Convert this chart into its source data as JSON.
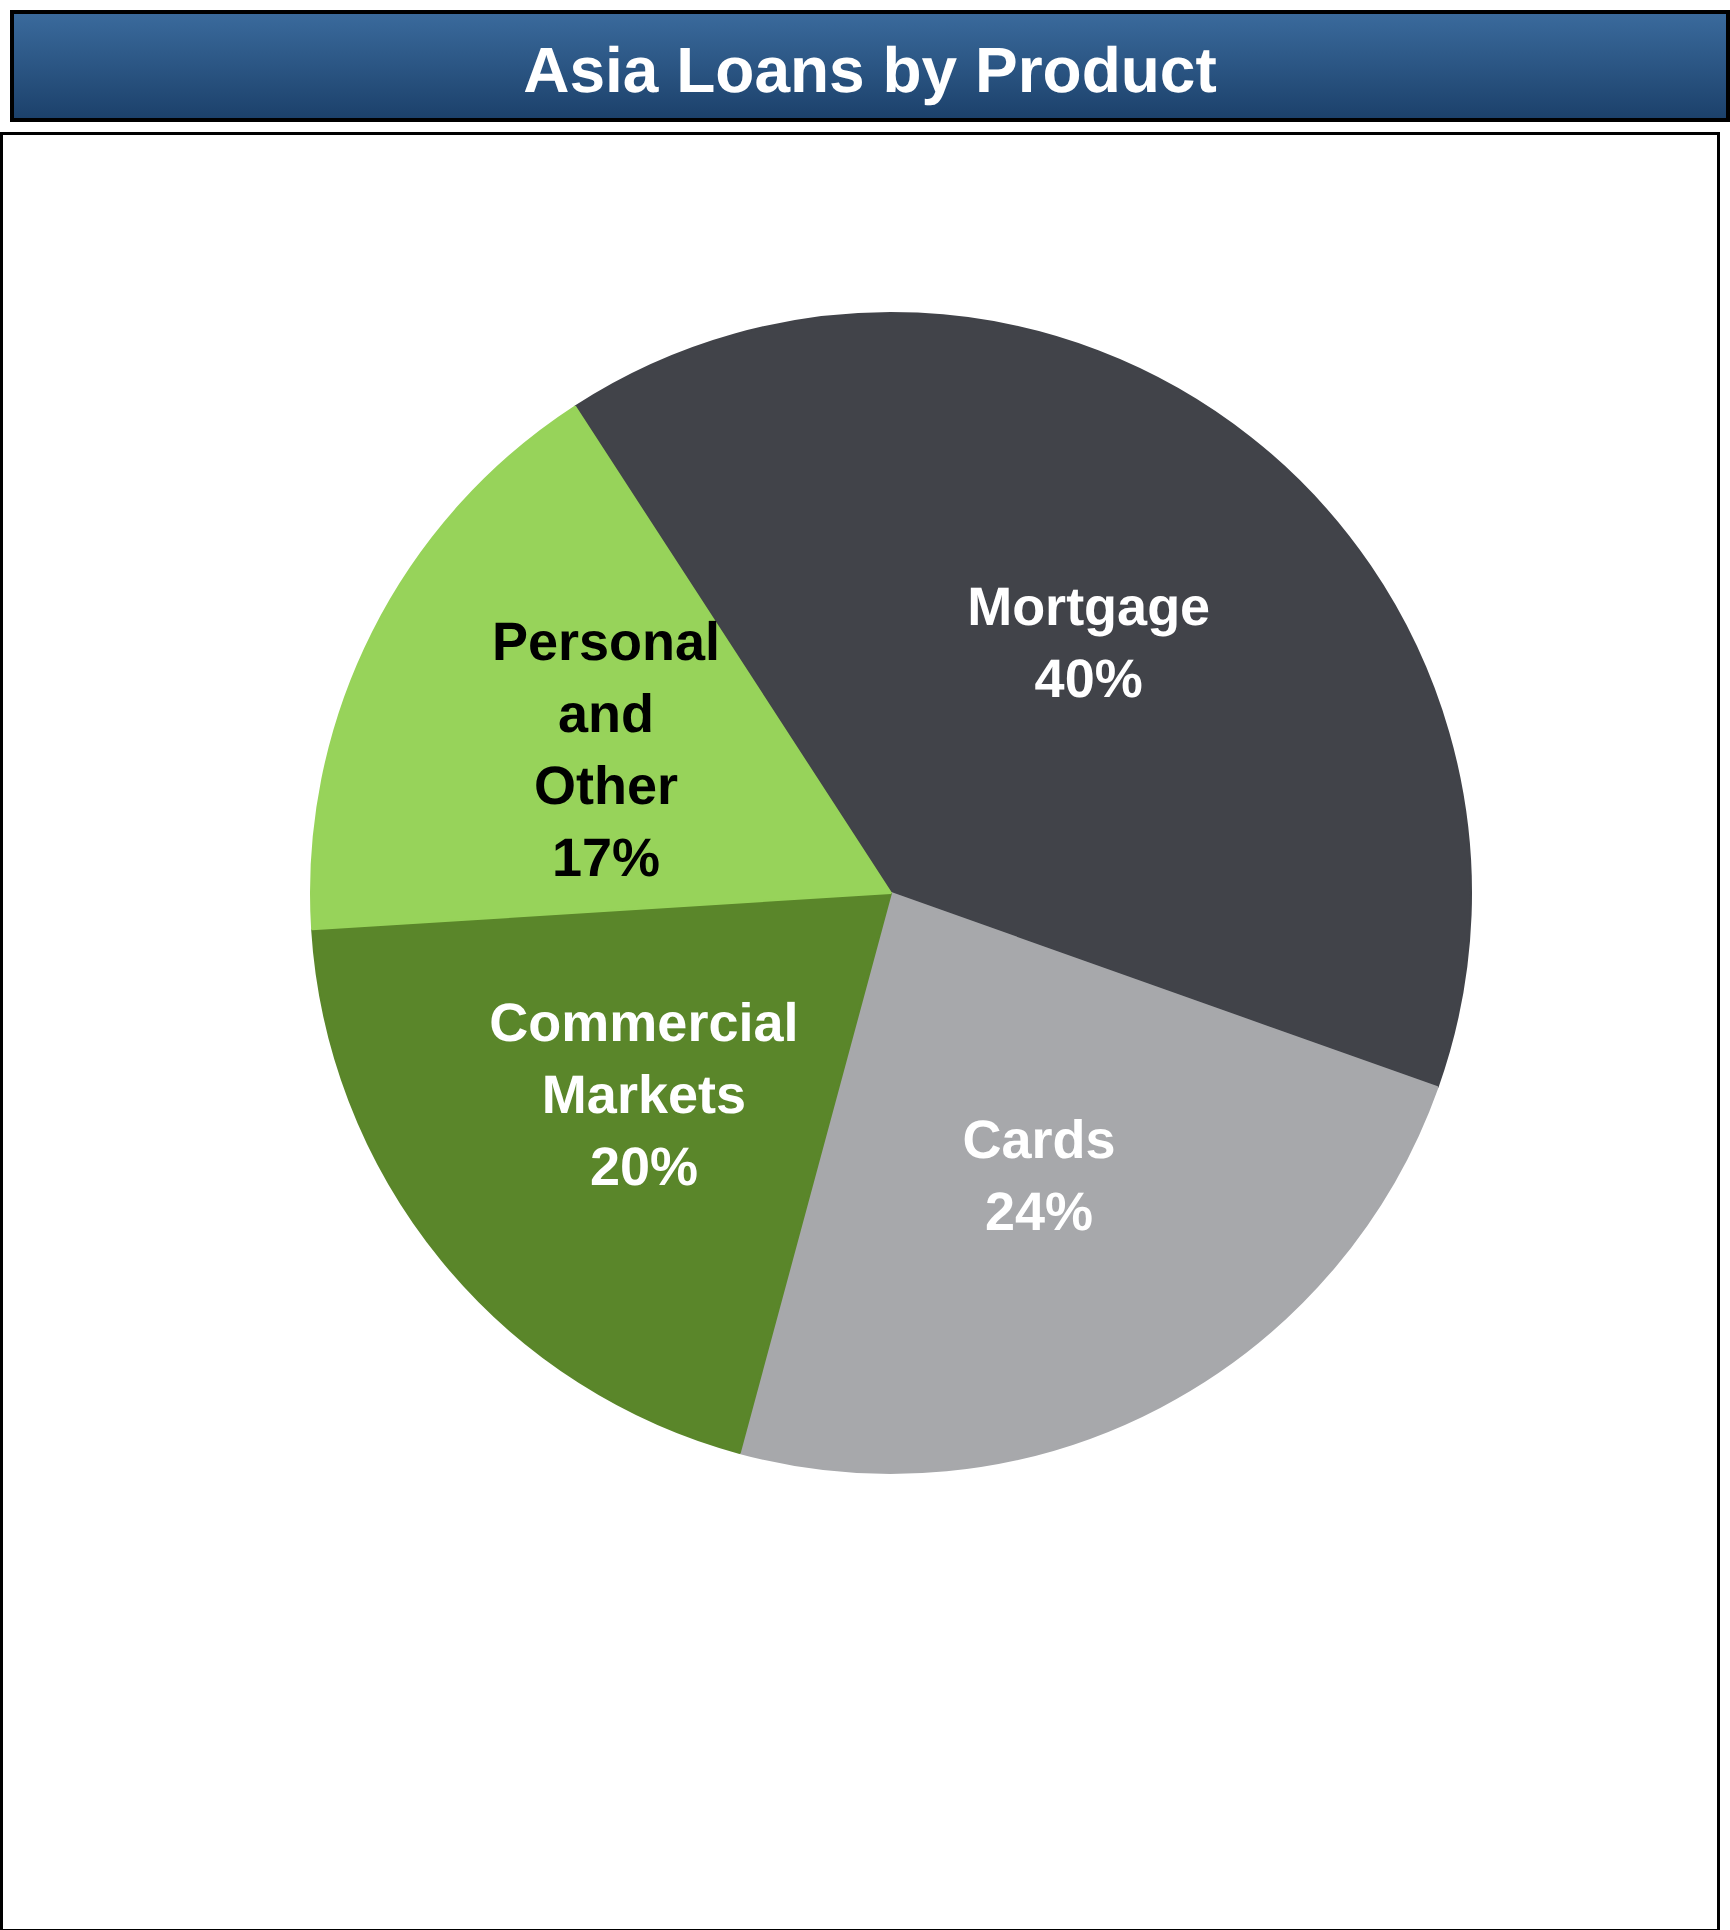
{
  "chart_data": {
    "type": "pie",
    "title": "Asia Loans by Product",
    "categories": [
      "Mortgage",
      "Cards",
      "Commercial Markets",
      "Personal and Other"
    ],
    "values": [
      40,
      24,
      20,
      17
    ],
    "colors": [
      "#414349",
      "#a7a8ab",
      "#5a862a",
      "#97d35a"
    ],
    "value_labels": [
      "40%",
      "24%",
      "20%",
      "17%"
    ]
  }
}
